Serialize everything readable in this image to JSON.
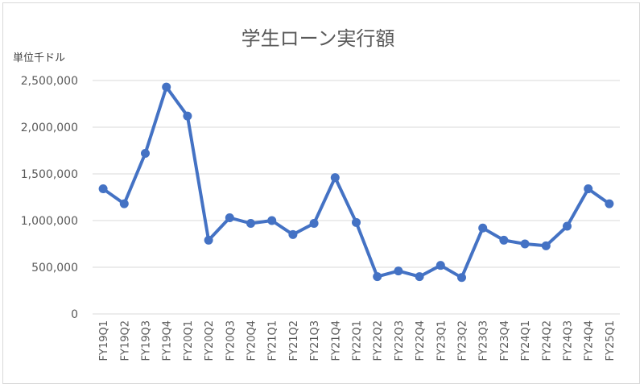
{
  "chart_data": {
    "type": "line",
    "title": "学生ローン実行額",
    "ylabel": "単位千ドル",
    "xlabel": "",
    "ylim": [
      0,
      2500000
    ],
    "yticks": [
      0,
      500000,
      1000000,
      1500000,
      2000000,
      2500000
    ],
    "ytick_labels": [
      "0",
      "500,000",
      "1,000,000",
      "1,500,000",
      "2,000,000",
      "2,500,000"
    ],
    "grid": true,
    "legend": "none",
    "colors": {
      "line": "#4472C4",
      "grid": "#d9d9d9",
      "text": "#595959"
    },
    "categories": [
      "FY19Q1",
      "FY19Q2",
      "FY19Q3",
      "FY19Q4",
      "FY20Q1",
      "FY20Q2",
      "FY20Q3",
      "FY20Q4",
      "FY21Q1",
      "FY21Q2",
      "FY21Q3",
      "FY21Q4",
      "FY22Q1",
      "FY22Q2",
      "FY22Q3",
      "FY22Q4",
      "FY23Q1",
      "FY23Q2",
      "FY23Q3",
      "FY23Q4",
      "FY24Q1",
      "FY24Q2",
      "FY24Q3",
      "FY24Q4",
      "FY25Q1"
    ],
    "values": [
      1340000,
      1180000,
      1720000,
      2430000,
      2120000,
      790000,
      1030000,
      970000,
      1000000,
      850000,
      970000,
      1460000,
      980000,
      400000,
      460000,
      400000,
      520000,
      390000,
      920000,
      790000,
      750000,
      730000,
      940000,
      1340000,
      1180000
    ]
  }
}
